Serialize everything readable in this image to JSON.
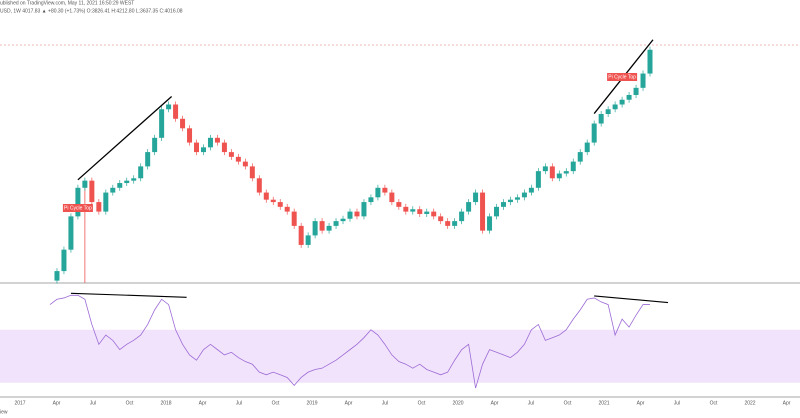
{
  "header": {
    "published": "ublished on TradingView.com, May 11, 2021 16:50:29 WEST",
    "symbol_line": "USD, 1W 4017.83 ▲ +80.30 (+1.73%) O:3826.41 H:4212.80 L:3637.35 C:4016.08",
    "footer": "iew"
  },
  "chart_data": [
    {
      "type": "candlestick",
      "up_color": "#26a69a",
      "down_color": "#ef5350",
      "ylim": [
        0,
        100
      ],
      "values": [
        1,
        5,
        14,
        28,
        40,
        43,
        34,
        30,
        38,
        40,
        42,
        43,
        44,
        49,
        55,
        61,
        73,
        75,
        69,
        65,
        59,
        55,
        57,
        61,
        59,
        55,
        53,
        51,
        49,
        44,
        38,
        35,
        34,
        32,
        30,
        24,
        16,
        20,
        26,
        22,
        24,
        26,
        27,
        30,
        28,
        34,
        36,
        40,
        38,
        34,
        32,
        30,
        31,
        29,
        30,
        28,
        26,
        24,
        26,
        30,
        34,
        38,
        22,
        28,
        32,
        34,
        35,
        36,
        38,
        40,
        47,
        49,
        44,
        46,
        47,
        51,
        55,
        59,
        67,
        71,
        73,
        75,
        77,
        79,
        82,
        88,
        98
      ],
      "annotations": [
        "Pi Cycle Top",
        "Pi Cycle Top"
      ],
      "xlabels": [
        "2017",
        "Apr",
        "Jul",
        "Oct",
        "2018",
        "Apr",
        "Jul",
        "Oct",
        "2019",
        "Apr",
        "Jul",
        "Oct",
        "2020",
        "Apr",
        "Jul",
        "Oct",
        "2021",
        "Apr",
        "Jul",
        "Oct",
        "2022",
        "Apr"
      ]
    },
    {
      "type": "line",
      "color": "#9c6ad6",
      "ylim": [
        0,
        100
      ],
      "band": [
        30,
        70
      ],
      "band_color": "#f1e3fb",
      "values": [
        89,
        93,
        94,
        96,
        96,
        93,
        74,
        59,
        66,
        62,
        55,
        59,
        62,
        66,
        74,
        85,
        93,
        89,
        70,
        59,
        51,
        47,
        55,
        59,
        55,
        51,
        53,
        49,
        46,
        44,
        38,
        36,
        38,
        36,
        34,
        28,
        34,
        38,
        40,
        41,
        44,
        47,
        51,
        55,
        59,
        64,
        70,
        66,
        59,
        51,
        46,
        44,
        41,
        44,
        40,
        38,
        36,
        38,
        47,
        55,
        59,
        26,
        44,
        55,
        53,
        51,
        49,
        53,
        59,
        70,
        74,
        62,
        64,
        66,
        70,
        78,
        85,
        93,
        94,
        91,
        89,
        66,
        78,
        72,
        81,
        89,
        89
      ]
    }
  ]
}
